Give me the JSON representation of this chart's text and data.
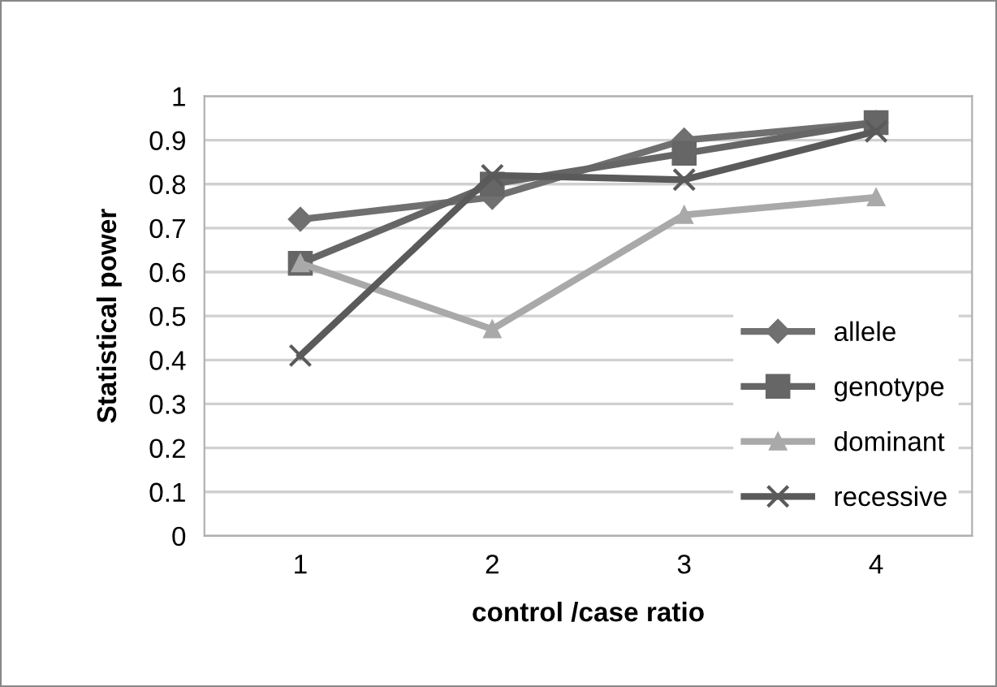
{
  "chart_data": {
    "type": "line",
    "xlabel": "control /case ratio",
    "ylabel": "Statistical power",
    "categories": [
      "1",
      "2",
      "3",
      "4"
    ],
    "series": [
      {
        "name": "allele",
        "color": "#707070",
        "marker": "diamond",
        "values": [
          0.72,
          0.77,
          0.9,
          0.94
        ]
      },
      {
        "name": "genotype",
        "color": "#666666",
        "marker": "square",
        "values": [
          0.62,
          0.8,
          0.87,
          0.94
        ]
      },
      {
        "name": "dominant",
        "color": "#a9a9a9",
        "marker": "triangle",
        "values": [
          0.62,
          0.47,
          0.73,
          0.77
        ]
      },
      {
        "name": "recessive",
        "color": "#5a5a5a",
        "marker": "cross",
        "values": [
          0.41,
          0.82,
          0.81,
          0.92
        ]
      }
    ],
    "ylim": [
      0,
      1
    ],
    "yticks": [
      0,
      0.1,
      0.2,
      0.3,
      0.4,
      0.5,
      0.6,
      0.7,
      0.8,
      0.9,
      1
    ],
    "grid": "y",
    "legend": "bottom right",
    "line_style": "solid"
  }
}
